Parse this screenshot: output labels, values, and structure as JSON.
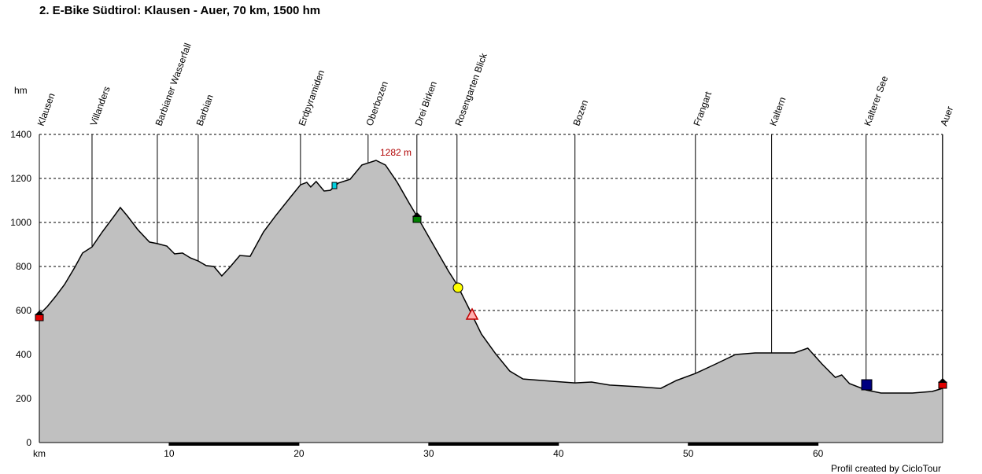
{
  "chart_data": {
    "type": "area",
    "title": "2. E-Bike Südtirol: Klausen - Auer, 70 km, 1500 hm",
    "x_label": "km",
    "y_label": "hm",
    "annotation": "1282 m",
    "footer": "Profil created by CicloTour",
    "color": "#c0c0c0",
    "line_color": "#000000",
    "grid": true,
    "xlim": [
      0,
      69.6
    ],
    "ylim": [
      0,
      1400
    ],
    "xticks": [
      10,
      20,
      30,
      40,
      50,
      60
    ],
    "yticks": [
      0,
      200,
      400,
      600,
      800,
      1000,
      1200,
      1400
    ],
    "waypoints": [
      {
        "name": "Klausen",
        "km": 0
      },
      {
        "name": "Villanders",
        "km": 4.06
      },
      {
        "name": "Barbianer Wasserfall",
        "km": 9.09
      },
      {
        "name": "Barbian",
        "km": 12.24
      },
      {
        "name": "Erdpyramiden",
        "km": 20.12
      },
      {
        "name": "Oberbozen",
        "km": 25.33
      },
      {
        "name": "Drei Birken",
        "km": 29.09
      },
      {
        "name": "Rosengarten Blick",
        "km": 32.18
      },
      {
        "name": "Bozen",
        "km": 41.27
      },
      {
        "name": "Frangart",
        "km": 50.55
      },
      {
        "name": "Kaltern",
        "km": 56.42
      },
      {
        "name": "Kalterer See",
        "km": 63.7
      },
      {
        "name": "Auer",
        "km": 69.58
      }
    ],
    "x": [
      0,
      0.61,
      1.21,
      1.94,
      2.73,
      3.33,
      4.06,
      4.85,
      5.76,
      6.24,
      6.79,
      7.58,
      8.48,
      9.09,
      9.82,
      10.42,
      11.03,
      11.64,
      12.24,
      12.85,
      13.45,
      14.06,
      14.67,
      15.45,
      16.24,
      17.27,
      18.18,
      19.39,
      20.12,
      20.61,
      20.91,
      21.33,
      21.94,
      22.42,
      23.03,
      23.94,
      24.85,
      25.94,
      26.67,
      27.58,
      28.48,
      29.09,
      30.3,
      31.52,
      32.18,
      33.03,
      34.06,
      35.15,
      36.24,
      37.27,
      39.39,
      41.27,
      42.55,
      43.94,
      46.06,
      47.88,
      49.09,
      50.55,
      52.12,
      53.64,
      55.15,
      56.42,
      58.18,
      59.21,
      60.3,
      61.33,
      61.82,
      62.42,
      63.7,
      64.85,
      67.27,
      68.79,
      69.58
    ],
    "values": [
      582,
      618,
      661,
      718,
      796,
      861,
      889,
      957,
      1029,
      1068,
      1029,
      968,
      911,
      904,
      893,
      857,
      861,
      839,
      825,
      804,
      800,
      757,
      796,
      850,
      846,
      957,
      1029,
      1118,
      1171,
      1182,
      1161,
      1186,
      1143,
      1146,
      1179,
      1196,
      1261,
      1282,
      1261,
      1182,
      1089,
      1029,
      904,
      779,
      718,
      618,
      493,
      404,
      325,
      289,
      279,
      271,
      275,
      261,
      254,
      246,
      282,
      314,
      357,
      400,
      407,
      407,
      407,
      429,
      357,
      296,
      307,
      268,
      239,
      225,
      225,
      232,
      246
    ]
  }
}
